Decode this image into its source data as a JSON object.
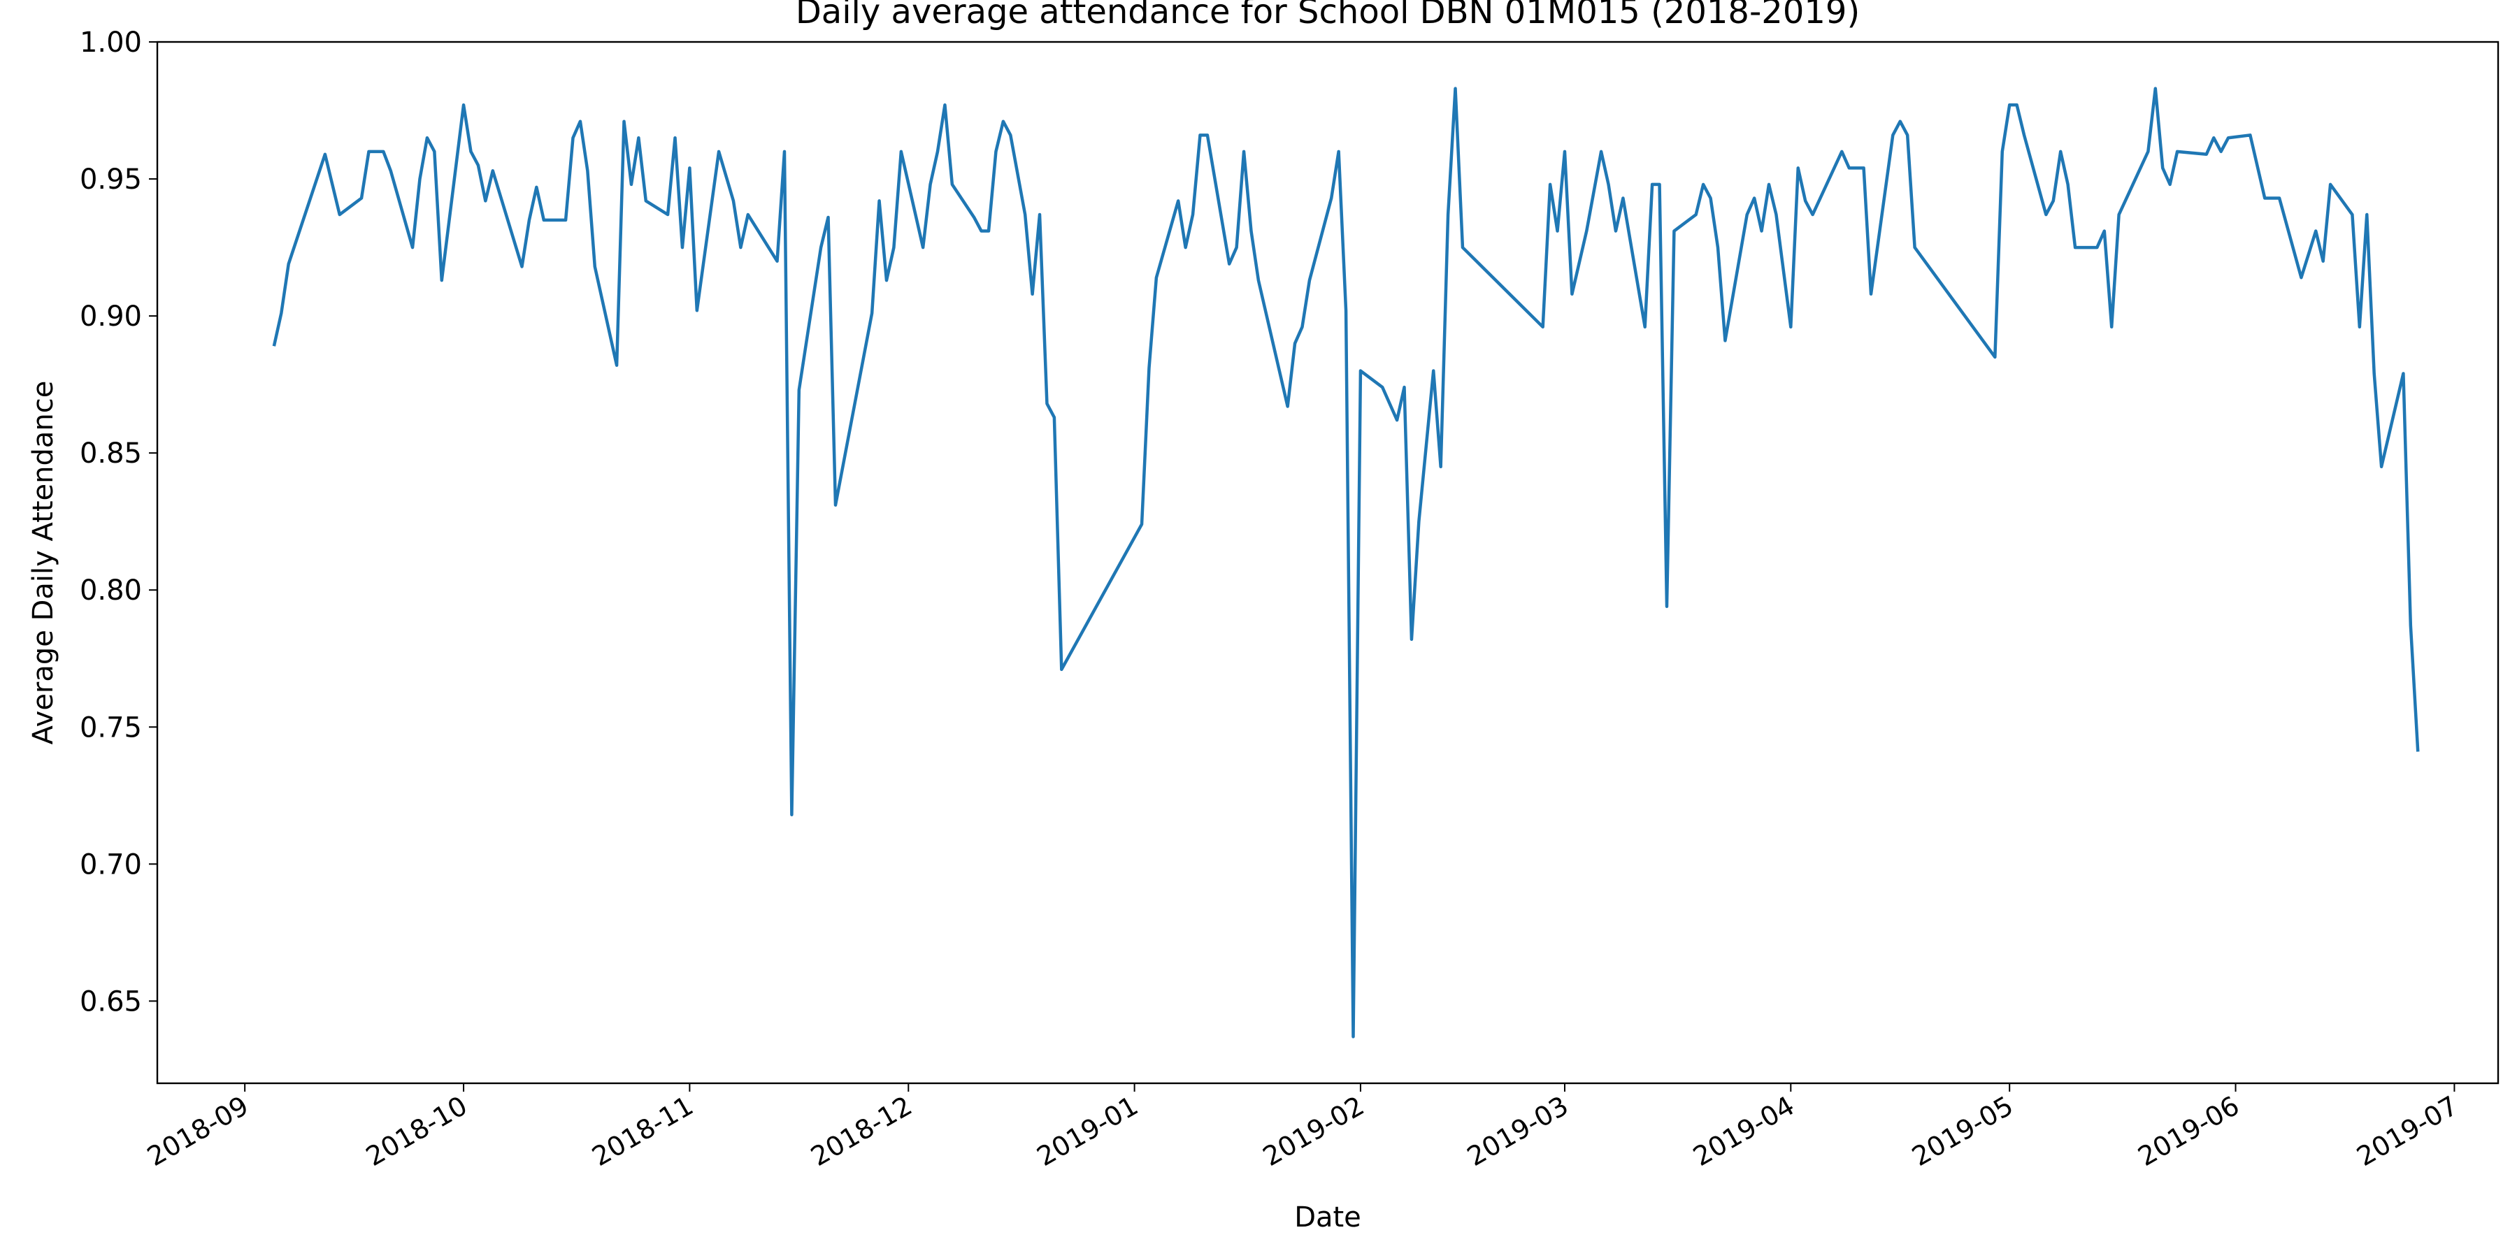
{
  "chart_data": {
    "type": "line",
    "title": "Daily average attendance for School DBN 01M015 (2018-2019)",
    "xlabel": "Date",
    "ylabel": "Average Daily Attendance",
    "xlim": [
      "2018-08-20",
      "2019-07-07"
    ],
    "ylim": [
      0.62,
      1.0
    ],
    "x_ticks": [
      "2018-09-01",
      "2018-10-01",
      "2018-11-01",
      "2018-12-01",
      "2019-01-01",
      "2019-02-01",
      "2019-03-01",
      "2019-04-01",
      "2019-05-01",
      "2019-06-01",
      "2019-07-01"
    ],
    "x_tick_labels": [
      "2018-09",
      "2018-10",
      "2018-11",
      "2018-12",
      "2019-01",
      "2019-02",
      "2019-03",
      "2019-04",
      "2019-05",
      "2019-06",
      "2019-07"
    ],
    "y_ticks": [
      0.65,
      0.7,
      0.75,
      0.8,
      0.85,
      0.9,
      0.95,
      1.0
    ],
    "y_tick_labels": [
      "0.65",
      "0.70",
      "0.75",
      "0.80",
      "0.85",
      "0.90",
      "0.95",
      "1.00"
    ],
    "grid": false,
    "series": [
      {
        "color": "#1f77b4",
        "points": [
          [
            "2018-09-05",
            0.889
          ],
          [
            "2018-09-06",
            0.901
          ],
          [
            "2018-09-07",
            0.919
          ],
          [
            "2018-09-12",
            0.959
          ],
          [
            "2018-09-14",
            0.937
          ],
          [
            "2018-09-17",
            0.943
          ],
          [
            "2018-09-18",
            0.96
          ],
          [
            "2018-09-20",
            0.96
          ],
          [
            "2018-09-21",
            0.953
          ],
          [
            "2018-09-24",
            0.925
          ],
          [
            "2018-09-25",
            0.95
          ],
          [
            "2018-09-26",
            0.965
          ],
          [
            "2018-09-27",
            0.96
          ],
          [
            "2018-09-28",
            0.913
          ],
          [
            "2018-10-01",
            0.977
          ],
          [
            "2018-10-02",
            0.96
          ],
          [
            "2018-10-03",
            0.955
          ],
          [
            "2018-10-04",
            0.942
          ],
          [
            "2018-10-05",
            0.953
          ],
          [
            "2018-10-09",
            0.918
          ],
          [
            "2018-10-10",
            0.935
          ],
          [
            "2018-10-11",
            0.947
          ],
          [
            "2018-10-12",
            0.935
          ],
          [
            "2018-10-15",
            0.935
          ],
          [
            "2018-10-16",
            0.965
          ],
          [
            "2018-10-17",
            0.971
          ],
          [
            "2018-10-18",
            0.953
          ],
          [
            "2018-10-19",
            0.918
          ],
          [
            "2018-10-22",
            0.882
          ],
          [
            "2018-10-23",
            0.971
          ],
          [
            "2018-10-24",
            0.948
          ],
          [
            "2018-10-25",
            0.965
          ],
          [
            "2018-10-26",
            0.942
          ],
          [
            "2018-10-29",
            0.937
          ],
          [
            "2018-10-30",
            0.965
          ],
          [
            "2018-10-31",
            0.925
          ],
          [
            "2018-11-01",
            0.954
          ],
          [
            "2018-11-02",
            0.902
          ],
          [
            "2018-11-05",
            0.96
          ],
          [
            "2018-11-07",
            0.942
          ],
          [
            "2018-11-08",
            0.925
          ],
          [
            "2018-11-09",
            0.937
          ],
          [
            "2018-11-13",
            0.92
          ],
          [
            "2018-11-14",
            0.96
          ],
          [
            "2018-11-15",
            0.718
          ],
          [
            "2018-11-16",
            0.873
          ],
          [
            "2018-11-19",
            0.925
          ],
          [
            "2018-11-20",
            0.936
          ],
          [
            "2018-11-21",
            0.831
          ],
          [
            "2018-11-26",
            0.901
          ],
          [
            "2018-11-27",
            0.942
          ],
          [
            "2018-11-28",
            0.913
          ],
          [
            "2018-11-29",
            0.925
          ],
          [
            "2018-11-30",
            0.96
          ],
          [
            "2018-12-03",
            0.925
          ],
          [
            "2018-12-04",
            0.948
          ],
          [
            "2018-12-05",
            0.96
          ],
          [
            "2018-12-06",
            0.977
          ],
          [
            "2018-12-07",
            0.948
          ],
          [
            "2018-12-10",
            0.936
          ],
          [
            "2018-12-11",
            0.931
          ],
          [
            "2018-12-12",
            0.931
          ],
          [
            "2018-12-13",
            0.96
          ],
          [
            "2018-12-14",
            0.971
          ],
          [
            "2018-12-15",
            0.966
          ],
          [
            "2018-12-17",
            0.937
          ],
          [
            "2018-12-18",
            0.908
          ],
          [
            "2018-12-19",
            0.937
          ],
          [
            "2018-12-20",
            0.868
          ],
          [
            "2018-12-21",
            0.863
          ],
          [
            "2018-12-22",
            0.771
          ],
          [
            "2019-01-02",
            0.824
          ],
          [
            "2019-01-03",
            0.881
          ],
          [
            "2019-01-04",
            0.914
          ],
          [
            "2019-01-07",
            0.942
          ],
          [
            "2019-01-08",
            0.925
          ],
          [
            "2019-01-09",
            0.937
          ],
          [
            "2019-01-10",
            0.966
          ],
          [
            "2019-01-11",
            0.966
          ],
          [
            "2019-01-14",
            0.919
          ],
          [
            "2019-01-15",
            0.925
          ],
          [
            "2019-01-16",
            0.96
          ],
          [
            "2019-01-17",
            0.931
          ],
          [
            "2019-01-18",
            0.913
          ],
          [
            "2019-01-22",
            0.867
          ],
          [
            "2019-01-23",
            0.89
          ],
          [
            "2019-01-24",
            0.896
          ],
          [
            "2019-01-25",
            0.913
          ],
          [
            "2019-01-28",
            0.943
          ],
          [
            "2019-01-29",
            0.96
          ],
          [
            "2019-01-30",
            0.902
          ],
          [
            "2019-01-31",
            0.637
          ],
          [
            "2019-02-01",
            0.88
          ],
          [
            "2019-02-04",
            0.874
          ],
          [
            "2019-02-06",
            0.862
          ],
          [
            "2019-02-07",
            0.874
          ],
          [
            "2019-02-08",
            0.782
          ],
          [
            "2019-02-09",
            0.825
          ],
          [
            "2019-02-11",
            0.88
          ],
          [
            "2019-02-12",
            0.845
          ],
          [
            "2019-02-13",
            0.937
          ],
          [
            "2019-02-14",
            0.983
          ],
          [
            "2019-02-15",
            0.925
          ],
          [
            "2019-02-26",
            0.896
          ],
          [
            "2019-02-27",
            0.948
          ],
          [
            "2019-02-28",
            0.931
          ],
          [
            "2019-03-01",
            0.96
          ],
          [
            "2019-03-02",
            0.908
          ],
          [
            "2019-03-04",
            0.931
          ],
          [
            "2019-03-06",
            0.96
          ],
          [
            "2019-03-07",
            0.948
          ],
          [
            "2019-03-08",
            0.931
          ],
          [
            "2019-03-09",
            0.943
          ],
          [
            "2019-03-12",
            0.896
          ],
          [
            "2019-03-13",
            0.948
          ],
          [
            "2019-03-14",
            0.948
          ],
          [
            "2019-03-15",
            0.794
          ],
          [
            "2019-03-16",
            0.931
          ],
          [
            "2019-03-19",
            0.937
          ],
          [
            "2019-03-20",
            0.948
          ],
          [
            "2019-03-21",
            0.943
          ],
          [
            "2019-03-22",
            0.925
          ],
          [
            "2019-03-23",
            0.891
          ],
          [
            "2019-03-26",
            0.937
          ],
          [
            "2019-03-27",
            0.943
          ],
          [
            "2019-03-28",
            0.931
          ],
          [
            "2019-03-29",
            0.948
          ],
          [
            "2019-03-30",
            0.937
          ],
          [
            "2019-04-01",
            0.896
          ],
          [
            "2019-04-02",
            0.954
          ],
          [
            "2019-04-03",
            0.942
          ],
          [
            "2019-04-04",
            0.937
          ],
          [
            "2019-04-08",
            0.96
          ],
          [
            "2019-04-09",
            0.954
          ],
          [
            "2019-04-11",
            0.954
          ],
          [
            "2019-04-12",
            0.908
          ],
          [
            "2019-04-15",
            0.966
          ],
          [
            "2019-04-16",
            0.971
          ],
          [
            "2019-04-17",
            0.966
          ],
          [
            "2019-04-18",
            0.925
          ],
          [
            "2019-04-29",
            0.885
          ],
          [
            "2019-04-30",
            0.96
          ],
          [
            "2019-05-01",
            0.977
          ],
          [
            "2019-05-02",
            0.977
          ],
          [
            "2019-05-03",
            0.966
          ],
          [
            "2019-05-06",
            0.937
          ],
          [
            "2019-05-07",
            0.942
          ],
          [
            "2019-05-08",
            0.96
          ],
          [
            "2019-05-09",
            0.948
          ],
          [
            "2019-05-10",
            0.925
          ],
          [
            "2019-05-13",
            0.925
          ],
          [
            "2019-05-14",
            0.931
          ],
          [
            "2019-05-15",
            0.896
          ],
          [
            "2019-05-16",
            0.937
          ],
          [
            "2019-05-20",
            0.96
          ],
          [
            "2019-05-21",
            0.983
          ],
          [
            "2019-05-22",
            0.954
          ],
          [
            "2019-05-23",
            0.948
          ],
          [
            "2019-05-24",
            0.96
          ],
          [
            "2019-05-28",
            0.959
          ],
          [
            "2019-05-29",
            0.965
          ],
          [
            "2019-05-30",
            0.96
          ],
          [
            "2019-05-31",
            0.965
          ],
          [
            "2019-06-03",
            0.966
          ],
          [
            "2019-06-05",
            0.943
          ],
          [
            "2019-06-07",
            0.943
          ],
          [
            "2019-06-10",
            0.914
          ],
          [
            "2019-06-12",
            0.931
          ],
          [
            "2019-06-13",
            0.92
          ],
          [
            "2019-06-14",
            0.948
          ],
          [
            "2019-06-17",
            0.937
          ],
          [
            "2019-06-18",
            0.896
          ],
          [
            "2019-06-19",
            0.937
          ],
          [
            "2019-06-20",
            0.879
          ],
          [
            "2019-06-21",
            0.845
          ],
          [
            "2019-06-24",
            0.879
          ],
          [
            "2019-06-25",
            0.787
          ],
          [
            "2019-06-26",
            0.741
          ]
        ]
      }
    ]
  }
}
